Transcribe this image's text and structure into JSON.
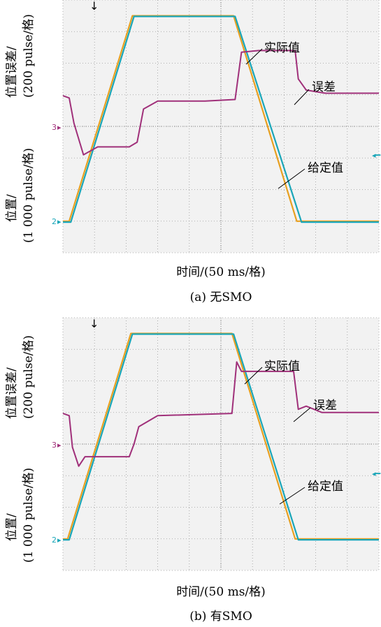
{
  "colors": {
    "given": "#e8a020",
    "actual": "#1aa6b8",
    "error": "#a0307a",
    "grid": "#9a9a9a",
    "background": "#f2f2f2"
  },
  "chart_data": [
    {
      "type": "line",
      "caption": "(a) 无SMO",
      "xlabel": "时间/(50 ms/格)",
      "ylabel_upper": [
        "位置误差/",
        "(200 pulse/格)"
      ],
      "ylabel_lower": [
        "位置/",
        "(1 000 pulse/格)"
      ],
      "channel_markers": [
        "3",
        "2"
      ],
      "x_divisions": 10,
      "y_divisions": 8,
      "grid": true,
      "annotations": [
        "实际值",
        "误差",
        "给定值"
      ],
      "series": [
        {
          "key": "given",
          "x": [
            0,
            0.2,
            2.2,
            5.4,
            7.4,
            10
          ],
          "y": [
            1,
            1,
            7.5,
            7.5,
            1,
            1
          ]
        },
        {
          "key": "actual",
          "x": [
            0,
            0.25,
            2.25,
            5.45,
            7.55,
            10
          ],
          "y": [
            0.97,
            0.97,
            7.48,
            7.48,
            0.97,
            0.97
          ]
        },
        {
          "key": "error",
          "x": [
            0,
            0.2,
            0.35,
            0.65,
            1.1,
            2.1,
            2.35,
            2.55,
            3.0,
            4.5,
            5.45,
            5.65,
            6.2,
            7.35,
            7.45,
            7.7,
            8.3,
            10
          ],
          "y": [
            4.97,
            4.9,
            4.1,
            3.1,
            3.35,
            3.35,
            3.5,
            4.55,
            4.8,
            4.8,
            4.85,
            6.35,
            6.4,
            6.4,
            5.5,
            5.15,
            5.05,
            5.05
          ]
        }
      ]
    },
    {
      "type": "line",
      "caption": "(b) 有SMO",
      "xlabel": "时间/(50 ms/格)",
      "ylabel_upper": [
        "位置误差/",
        "(200 pulse/格)"
      ],
      "ylabel_lower": [
        "位置/",
        "(1 000 pulse/格)"
      ],
      "channel_markers": [
        "3",
        "2"
      ],
      "x_divisions": 10,
      "y_divisions": 8,
      "grid": true,
      "annotations": [
        "实际值",
        "误差",
        "给定值"
      ],
      "series": [
        {
          "key": "given",
          "x": [
            0,
            0.15,
            2.15,
            5.35,
            7.35,
            10
          ],
          "y": [
            1,
            1,
            7.5,
            7.5,
            1,
            1
          ]
        },
        {
          "key": "actual",
          "x": [
            0,
            0.2,
            2.2,
            5.4,
            7.45,
            10
          ],
          "y": [
            0.97,
            0.97,
            7.48,
            7.48,
            0.97,
            0.97
          ]
        },
        {
          "key": "error",
          "x": [
            0,
            0.2,
            0.3,
            0.5,
            0.7,
            2.1,
            2.25,
            2.4,
            3.0,
            5.35,
            5.5,
            5.65,
            5.85,
            7.3,
            7.45,
            7.7,
            8.2,
            10
          ],
          "y": [
            4.97,
            4.9,
            3.9,
            3.3,
            3.6,
            3.6,
            4.0,
            4.55,
            4.9,
            4.97,
            6.6,
            6.3,
            6.3,
            6.3,
            5.1,
            5.2,
            5.0,
            5.0
          ]
        }
      ]
    }
  ]
}
